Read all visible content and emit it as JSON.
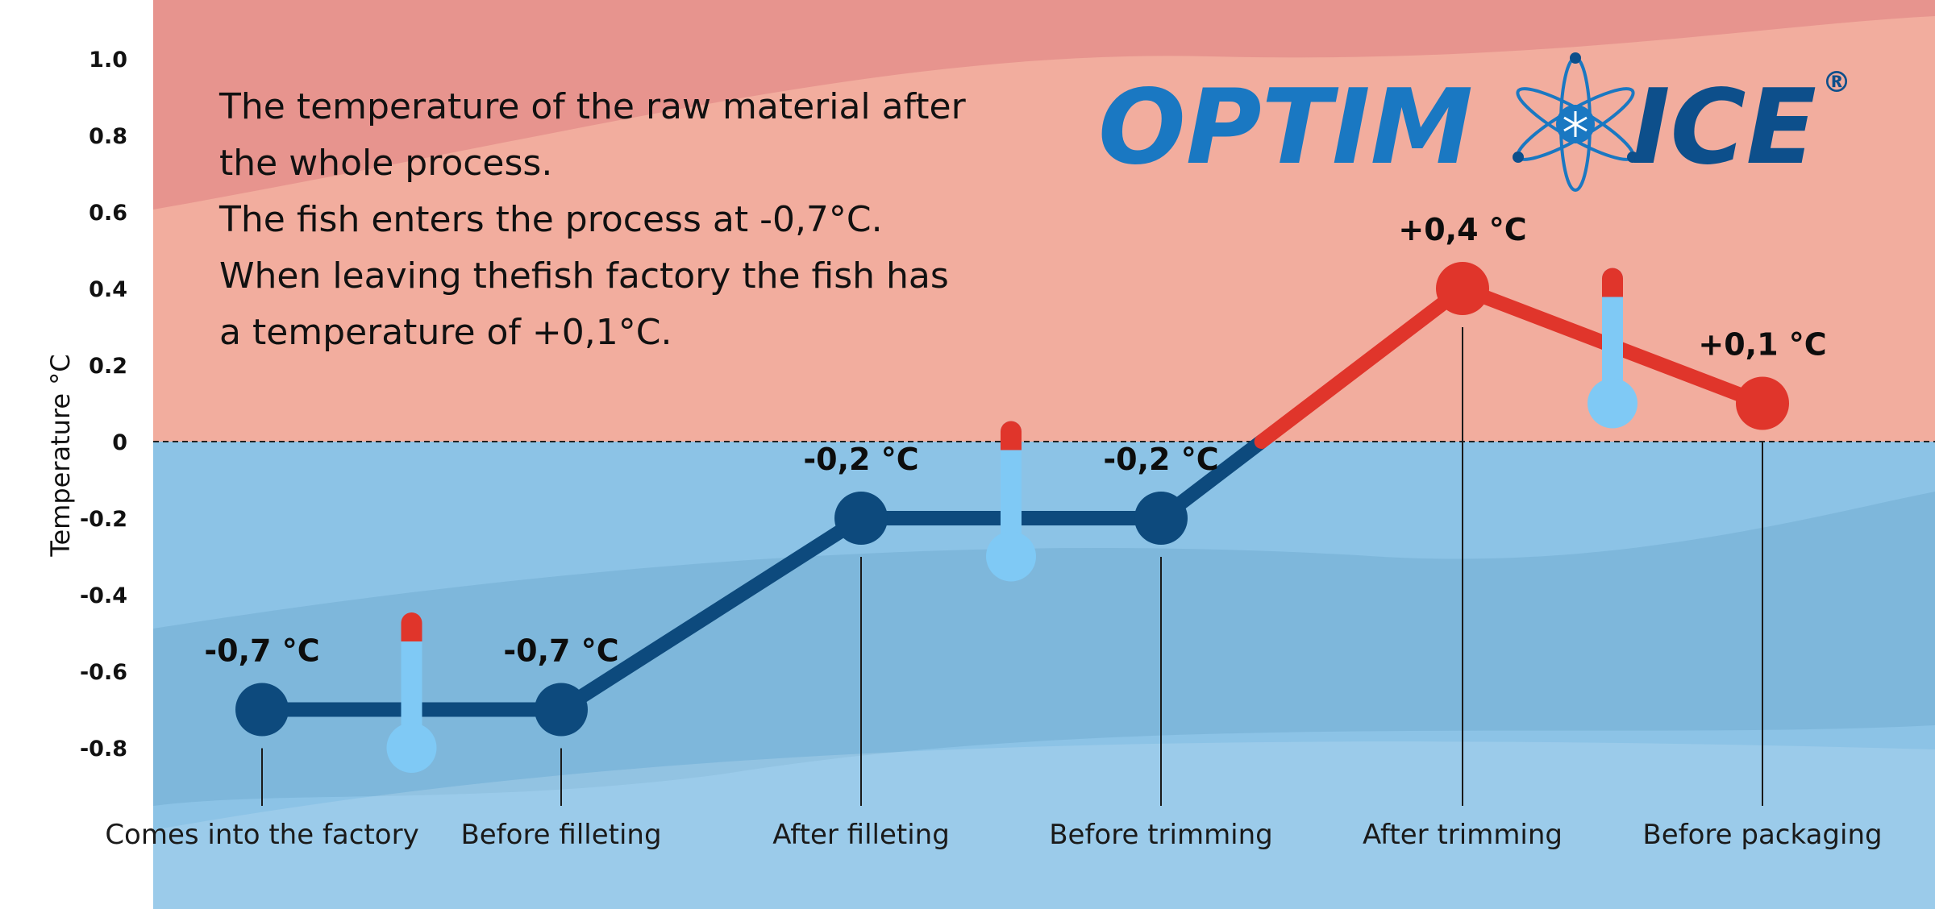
{
  "description": {
    "lines": [
      "The temperature of the raw material after",
      "the whole process.",
      "The fish enters the process at -0,7°C.",
      "When leaving thefish factory the fish has",
      "a temperature of +0,1°C."
    ]
  },
  "logo": {
    "left_text": "OPTIM",
    "right_text": "ICE",
    "registered": "®",
    "icon": "atom-snowflake-icon",
    "color_light": "#1a78c2",
    "color_dark": "#0d4f8b"
  },
  "colors": {
    "warm_band": "#f2ad9e",
    "cold_band": "#8cc3e6",
    "cold_line": "#0d4a7d",
    "warm_line": "#e0352b",
    "thermometer_body": "#7fc9f5",
    "thermometer_tip": "#e0352b",
    "left_strip": "#ffffff"
  },
  "chart_data": {
    "type": "line",
    "title": "",
    "xlabel": "",
    "ylabel": "Temperature  °C",
    "ylim": [
      -0.9,
      1.0
    ],
    "yticks": [
      1.0,
      0.8,
      0.6,
      0.4,
      0.2,
      0,
      -0.2,
      -0.4,
      -0.6,
      -0.8
    ],
    "ytick_labels": [
      "1.0",
      "0.8",
      "0.6",
      "0.4",
      "0.2",
      "0",
      "-0.2",
      "-0.4",
      "-0.6",
      "-0.8"
    ],
    "reference_line": 0,
    "categories": [
      "Comes into the factory",
      "Before filleting",
      "After filleting",
      "Before trimming",
      "After trimming",
      "Before packaging"
    ],
    "values": [
      -0.7,
      -0.7,
      -0.2,
      -0.2,
      0.4,
      0.1
    ],
    "data_labels": [
      "-0,7 °C",
      "-0,7 °C",
      "-0,2 °C",
      "-0,2 °C",
      "+0,4 °C",
      "+0,1 °C"
    ],
    "thermometers": [
      {
        "between": [
          0,
          1
        ],
        "level": -0.8
      },
      {
        "between": [
          2,
          3
        ],
        "level": -0.3
      },
      {
        "between": [
          4,
          5
        ],
        "level": 0.1
      }
    ],
    "grid": false,
    "legend": "none"
  }
}
